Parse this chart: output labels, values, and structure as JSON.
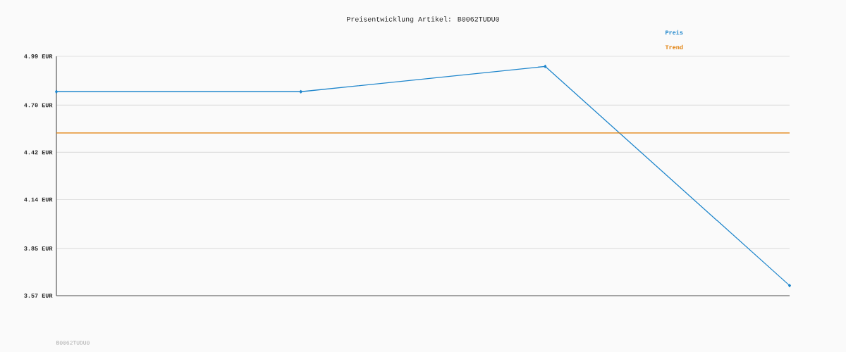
{
  "chart_data": {
    "type": "line",
    "title": "Preisentwicklung Artikel: B0062TUDU0",
    "categories": [
      null,
      null,
      null,
      null
    ],
    "series": [
      {
        "name": "Preis",
        "color": "#1f86cc",
        "values": [
          4.78,
          4.78,
          4.93,
          3.63
        ],
        "marker": "diamond"
      },
      {
        "name": "Trend",
        "color": "#e07b00",
        "values": [
          4.535,
          4.535,
          4.535,
          4.535
        ],
        "marker": "none"
      }
    ],
    "ylim": [
      3.57,
      4.99
    ],
    "yticks": [
      {
        "value": 3.57,
        "label": "3.57 EUR"
      },
      {
        "value": 3.85,
        "label": "3.85 EUR"
      },
      {
        "value": 4.14,
        "label": "4.14 EUR"
      },
      {
        "value": 4.42,
        "label": "4.42 EUR"
      },
      {
        "value": 4.7,
        "label": "4.70 EUR"
      },
      {
        "value": 4.99,
        "label": "4.99 EUR"
      }
    ],
    "grid": "y",
    "legend": "top right",
    "tick_labels": "y",
    "line_style": "solid",
    "annotations": [
      "B0062TUDU0"
    ]
  }
}
